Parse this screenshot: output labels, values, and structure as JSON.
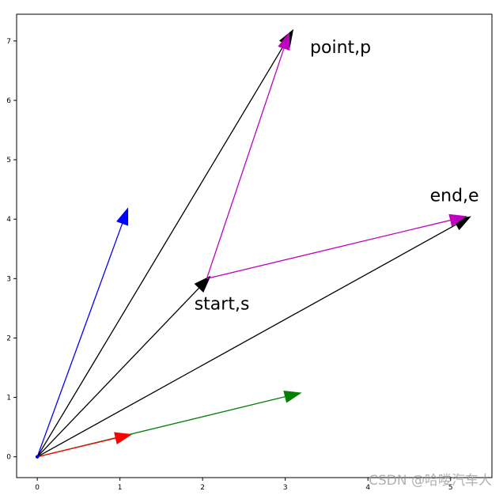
{
  "watermark": "CSDN @哈喽汽车人",
  "chart_data": {
    "type": "line",
    "title": "",
    "xlabel": "",
    "ylabel": "",
    "xlim": [
      -0.25,
      5.5
    ],
    "ylim": [
      -0.35,
      7.45
    ],
    "xticks": [
      0,
      1,
      2,
      3,
      4,
      5
    ],
    "yticks": [
      0,
      1,
      2,
      3,
      4,
      5,
      6,
      7
    ],
    "grid": false,
    "origin_point": [
      0,
      0
    ],
    "arrows": [
      {
        "from": [
          0,
          0
        ],
        "to": [
          1.1,
          4.2
        ],
        "color": "#0000ff"
      },
      {
        "from": [
          0,
          0
        ],
        "to": [
          3.1,
          7.2
        ],
        "color": "#000000"
      },
      {
        "from": [
          0,
          0
        ],
        "to": [
          2.1,
          3.05
        ],
        "color": "#000000"
      },
      {
        "from": [
          0,
          0
        ],
        "to": [
          5.25,
          4.05
        ],
        "color": "#000000"
      },
      {
        "from": [
          0,
          0
        ],
        "to": [
          3.2,
          1.08
        ],
        "color": "#008000"
      },
      {
        "from": [
          0,
          0
        ],
        "to": [
          1.15,
          0.38
        ],
        "color": "#ff0000"
      },
      {
        "from": [
          2.05,
          3.0
        ],
        "to": [
          3.05,
          7.15
        ],
        "color": "#c000c0"
      },
      {
        "from": [
          2.05,
          3.0
        ],
        "to": [
          5.2,
          4.05
        ],
        "color": "#c000c0"
      }
    ],
    "annotations": [
      {
        "text": "point,p",
        "x": 3.3,
        "y": 6.8
      },
      {
        "text": "end,e",
        "x": 4.75,
        "y": 4.3
      },
      {
        "text": "start,s",
        "x": 1.9,
        "y": 2.48
      }
    ]
  }
}
